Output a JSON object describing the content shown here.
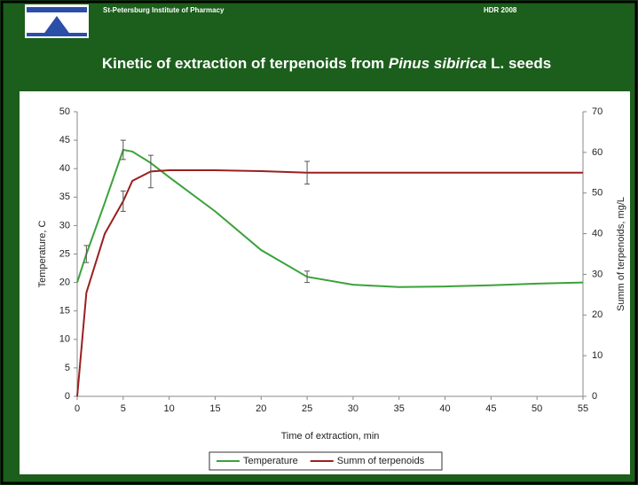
{
  "header": {
    "institute": "St-Petersburg Institute of Pharmacy",
    "event": "HDR 2008",
    "title_parts": [
      "Kinetic of extraction of terpenoids from ",
      "Pinus sibirica",
      " L. seeds"
    ]
  },
  "chart_data": {
    "type": "line",
    "x": [
      0,
      1,
      3,
      5,
      6,
      8,
      10,
      15,
      20,
      25,
      30,
      35,
      40,
      45,
      50,
      55
    ],
    "series": [
      {
        "name": "Temperature",
        "color": "#3aa23a",
        "values": [
          20,
          25,
          34,
          43.3,
          43,
          41,
          38.5,
          32.5,
          25.7,
          21,
          19.6,
          19.2,
          19.3,
          19.5,
          19.8,
          20
        ],
        "errors": [
          null,
          1.5,
          null,
          1.7,
          null,
          null,
          null,
          null,
          null,
          1,
          null,
          null,
          null,
          null,
          null,
          null
        ]
      },
      {
        "name": "Summ of terpenoids",
        "color": "#9b1f1f",
        "axis": "y2",
        "values": [
          0,
          25.5,
          40,
          48,
          53,
          55.3,
          55.6,
          55.6,
          55.4,
          55,
          55,
          55,
          55,
          55,
          55,
          55
        ],
        "errors": [
          null,
          null,
          null,
          2.5,
          null,
          4,
          null,
          null,
          null,
          2.8,
          null,
          null,
          null,
          null,
          null,
          null
        ]
      }
    ],
    "xlabel": "Time of extraction, min",
    "ylabel": "Temperature, C",
    "y2label": "Summ of terpenoids, mg/L",
    "xlim": [
      0,
      55
    ],
    "xticks": [
      0,
      5,
      10,
      15,
      20,
      25,
      30,
      35,
      40,
      45,
      50,
      55
    ],
    "ylim": [
      0,
      50
    ],
    "yticks": [
      0,
      5,
      10,
      15,
      20,
      25,
      30,
      35,
      40,
      45,
      50
    ],
    "y2lim": [
      0,
      70
    ],
    "y2ticks": [
      0,
      10,
      20,
      30,
      40,
      50,
      60,
      70
    ],
    "legend": "bottom"
  }
}
